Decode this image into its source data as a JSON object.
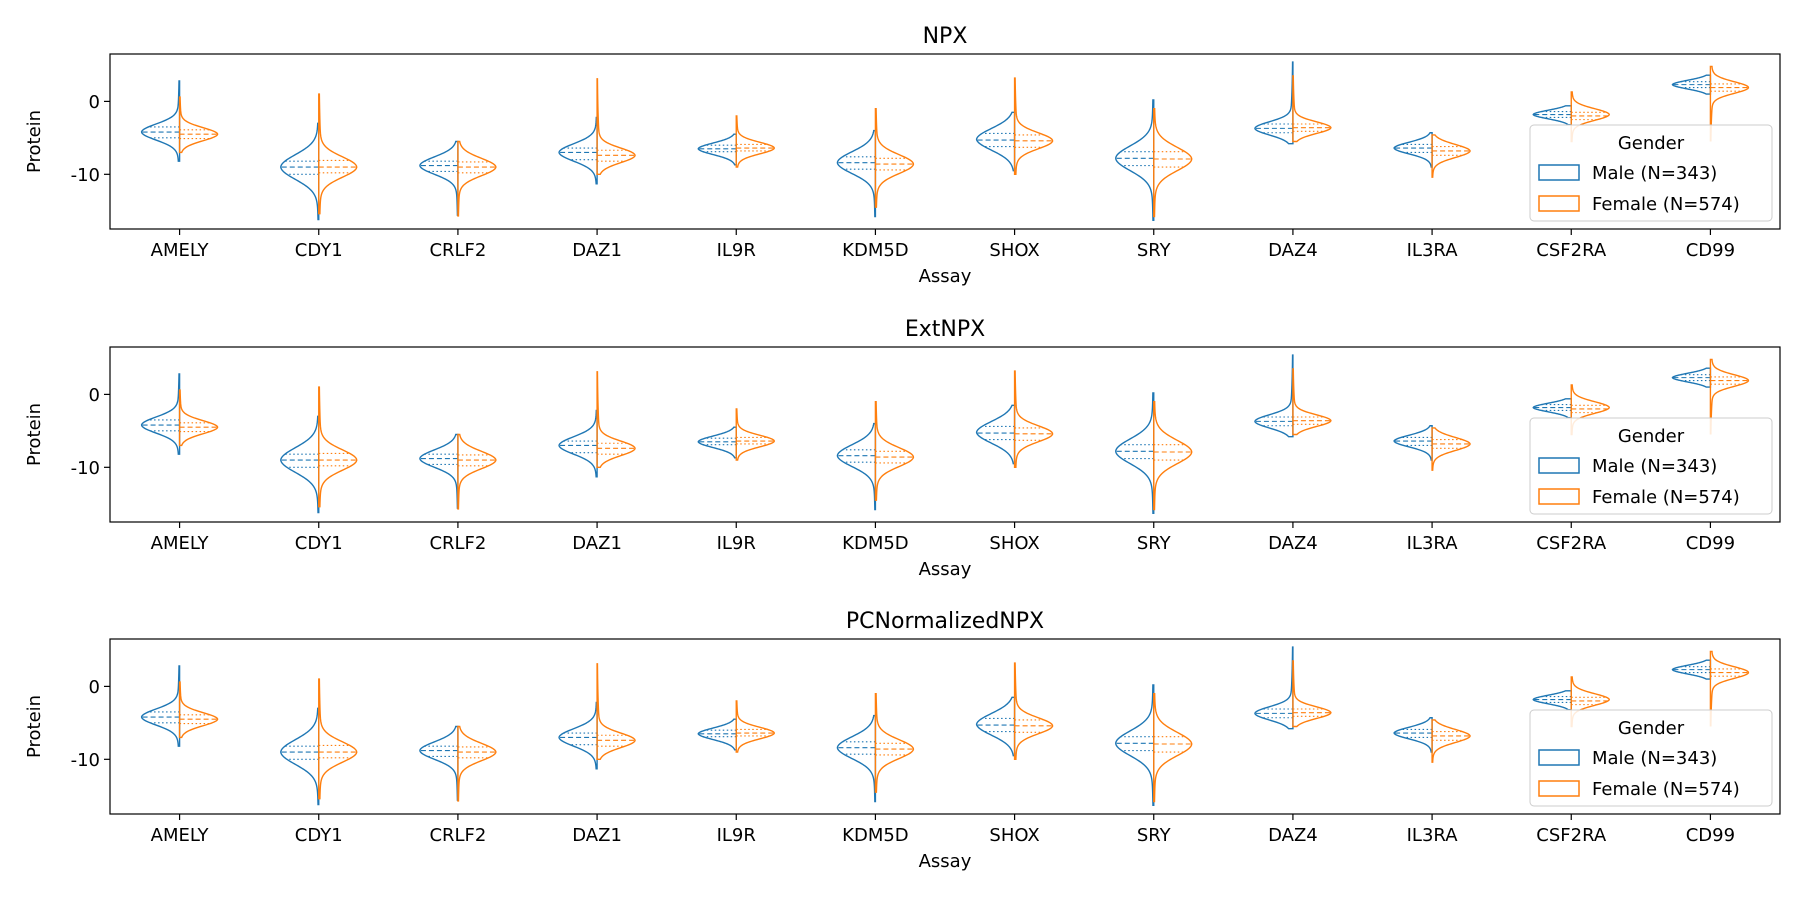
{
  "colors": {
    "male": "#1f77b4",
    "female": "#ff7f0e",
    "axis": "#000000"
  },
  "chart_data": [
    {
      "type": "violin",
      "title": "NPX",
      "xlabel": "Assay",
      "ylabel": "Protein",
      "ylim": [
        -17.5,
        6.5
      ],
      "yticks": [
        0,
        -10
      ],
      "legend": {
        "title": "Gender",
        "placement": "lower-right",
        "entries": [
          {
            "label": "Male (N=343)",
            "color_key": "male"
          },
          {
            "label": "Female (N=574)",
            "color_key": "female"
          }
        ]
      },
      "split": true,
      "categories": [
        "AMELY",
        "CDY1",
        "CRLF2",
        "DAZ1",
        "IL9R",
        "KDM5D",
        "SHOX",
        "SRY",
        "DAZ4",
        "IL3RA",
        "CSF2RA",
        "CD99"
      ],
      "series": [
        {
          "name": "Male (N=343)",
          "color_key": "male",
          "values": [
            {
              "min": -8.2,
              "q1": -5.0,
              "median": -4.2,
              "q3": -3.5,
              "max": 2.8,
              "peak": -4.2,
              "spread": 1.1
            },
            {
              "min": -16.2,
              "q1": -10.0,
              "median": -9.0,
              "q3": -8.2,
              "max": -3.0,
              "peak": -9.0,
              "spread": 1.7
            },
            {
              "min": -15.6,
              "q1": -9.6,
              "median": -8.8,
              "q3": -8.2,
              "max": -5.5,
              "peak": -8.8,
              "spread": 1.2
            },
            {
              "min": -11.3,
              "q1": -8.0,
              "median": -7.0,
              "q3": -6.4,
              "max": -2.2,
              "peak": -7.0,
              "spread": 1.2
            },
            {
              "min": -8.7,
              "q1": -6.9,
              "median": -6.5,
              "q3": -6.0,
              "max": -4.5,
              "peak": -6.5,
              "spread": 0.8
            },
            {
              "min": -15.8,
              "q1": -9.3,
              "median": -8.4,
              "q3": -7.6,
              "max": -4.0,
              "peak": -8.4,
              "spread": 1.5
            },
            {
              "min": -9.5,
              "q1": -6.2,
              "median": -5.3,
              "q3": -4.4,
              "max": -1.5,
              "peak": -5.2,
              "spread": 1.5
            },
            {
              "min": -16.3,
              "q1": -8.8,
              "median": -7.8,
              "q3": -6.9,
              "max": 0.2,
              "peak": -7.8,
              "spread": 1.7
            },
            {
              "min": -5.8,
              "q1": -4.3,
              "median": -3.7,
              "q3": -3.1,
              "max": 5.4,
              "peak": -3.7,
              "spread": 0.9
            },
            {
              "min": -9.0,
              "q1": -7.0,
              "median": -6.4,
              "q3": -5.9,
              "max": -4.3,
              "peak": -6.4,
              "spread": 0.8
            },
            {
              "min": -3.2,
              "q1": -2.2,
              "median": -1.8,
              "q3": -1.4,
              "max": -0.6,
              "peak": -1.8,
              "spread": 0.6
            },
            {
              "min": 1.0,
              "q1": 1.9,
              "median": 2.3,
              "q3": 2.7,
              "max": 3.6,
              "peak": 2.3,
              "spread": 0.6
            }
          ]
        },
        {
          "name": "Female (N=574)",
          "color_key": "female",
          "values": [
            {
              "min": -7.0,
              "q1": -5.1,
              "median": -4.5,
              "q3": -3.9,
              "max": 0.6,
              "peak": -4.5,
              "spread": 0.9
            },
            {
              "min": -15.4,
              "q1": -9.8,
              "median": -9.0,
              "q3": -8.1,
              "max": 1.0,
              "peak": -9.0,
              "spread": 1.4
            },
            {
              "min": -15.7,
              "q1": -9.8,
              "median": -9.0,
              "q3": -8.3,
              "max": -5.5,
              "peak": -9.0,
              "spread": 1.2
            },
            {
              "min": -10.0,
              "q1": -8.2,
              "median": -7.4,
              "q3": -6.7,
              "max": 3.1,
              "peak": -7.4,
              "spread": 1.0
            },
            {
              "min": -9.0,
              "q1": -6.8,
              "median": -6.4,
              "q3": -5.9,
              "max": -2.0,
              "peak": -6.4,
              "spread": 0.8
            },
            {
              "min": -14.5,
              "q1": -9.4,
              "median": -8.6,
              "q3": -7.8,
              "max": -1.0,
              "peak": -8.6,
              "spread": 1.3
            },
            {
              "min": -10.0,
              "q1": -6.3,
              "median": -5.4,
              "q3": -4.6,
              "max": 3.2,
              "peak": -5.4,
              "spread": 1.1
            },
            {
              "min": -15.8,
              "q1": -9.0,
              "median": -7.9,
              "q3": -6.9,
              "max": -1.0,
              "peak": -7.9,
              "spread": 1.6
            },
            {
              "min": -5.5,
              "q1": -4.1,
              "median": -3.6,
              "q3": -3.1,
              "max": 3.5,
              "peak": -3.6,
              "spread": 0.8
            },
            {
              "min": -10.4,
              "q1": -7.4,
              "median": -6.8,
              "q3": -6.2,
              "max": -4.6,
              "peak": -6.8,
              "spread": 0.9
            },
            {
              "min": -5.5,
              "q1": -2.5,
              "median": -2.0,
              "q3": -1.5,
              "max": 1.3,
              "peak": -1.8,
              "spread": 0.8
            },
            {
              "min": -5.4,
              "q1": 1.4,
              "median": 1.9,
              "q3": 2.4,
              "max": 4.8,
              "peak": 1.9,
              "spread": 0.8
            }
          ]
        }
      ]
    },
    {
      "type": "violin",
      "title": "ExtNPX",
      "xlabel": "Assay",
      "ylabel": "Protein",
      "ylim": [
        -17.5,
        6.5
      ],
      "yticks": [
        0,
        -10
      ],
      "legend": {
        "title": "Gender",
        "placement": "lower-right",
        "entries": [
          {
            "label": "Male (N=343)",
            "color_key": "male"
          },
          {
            "label": "Female (N=574)",
            "color_key": "female"
          }
        ]
      },
      "split": true,
      "categories": [
        "AMELY",
        "CDY1",
        "CRLF2",
        "DAZ1",
        "IL9R",
        "KDM5D",
        "SHOX",
        "SRY",
        "DAZ4",
        "IL3RA",
        "CSF2RA",
        "CD99"
      ],
      "series": [
        {
          "name": "Male (N=343)",
          "color_key": "male",
          "values": [
            {
              "min": -8.2,
              "q1": -5.0,
              "median": -4.2,
              "q3": -3.5,
              "max": 2.8,
              "peak": -4.2,
              "spread": 1.1
            },
            {
              "min": -16.2,
              "q1": -10.0,
              "median": -9.0,
              "q3": -8.2,
              "max": -3.0,
              "peak": -9.0,
              "spread": 1.7
            },
            {
              "min": -15.6,
              "q1": -9.6,
              "median": -8.8,
              "q3": -8.2,
              "max": -5.5,
              "peak": -8.8,
              "spread": 1.2
            },
            {
              "min": -11.3,
              "q1": -8.0,
              "median": -7.0,
              "q3": -6.4,
              "max": -2.2,
              "peak": -7.0,
              "spread": 1.2
            },
            {
              "min": -8.7,
              "q1": -6.9,
              "median": -6.5,
              "q3": -6.0,
              "max": -4.5,
              "peak": -6.5,
              "spread": 0.8
            },
            {
              "min": -15.8,
              "q1": -9.3,
              "median": -8.4,
              "q3": -7.6,
              "max": -4.0,
              "peak": -8.4,
              "spread": 1.5
            },
            {
              "min": -9.5,
              "q1": -6.2,
              "median": -5.3,
              "q3": -4.4,
              "max": -1.5,
              "peak": -5.2,
              "spread": 1.5
            },
            {
              "min": -16.3,
              "q1": -8.8,
              "median": -7.8,
              "q3": -6.9,
              "max": 0.2,
              "peak": -7.8,
              "spread": 1.7
            },
            {
              "min": -5.8,
              "q1": -4.3,
              "median": -3.7,
              "q3": -3.1,
              "max": 5.4,
              "peak": -3.7,
              "spread": 0.9
            },
            {
              "min": -9.0,
              "q1": -7.0,
              "median": -6.4,
              "q3": -5.9,
              "max": -4.3,
              "peak": -6.4,
              "spread": 0.8
            },
            {
              "min": -3.2,
              "q1": -2.2,
              "median": -1.8,
              "q3": -1.4,
              "max": -0.6,
              "peak": -1.8,
              "spread": 0.6
            },
            {
              "min": 1.0,
              "q1": 1.9,
              "median": 2.3,
              "q3": 2.7,
              "max": 3.6,
              "peak": 2.3,
              "spread": 0.6
            }
          ]
        },
        {
          "name": "Female (N=574)",
          "color_key": "female",
          "values": [
            {
              "min": -7.0,
              "q1": -5.1,
              "median": -4.5,
              "q3": -3.9,
              "max": 0.6,
              "peak": -4.5,
              "spread": 0.9
            },
            {
              "min": -15.4,
              "q1": -9.8,
              "median": -9.0,
              "q3": -8.1,
              "max": 1.0,
              "peak": -9.0,
              "spread": 1.4
            },
            {
              "min": -15.7,
              "q1": -9.8,
              "median": -9.0,
              "q3": -8.3,
              "max": -5.5,
              "peak": -9.0,
              "spread": 1.2
            },
            {
              "min": -10.0,
              "q1": -8.2,
              "median": -7.4,
              "q3": -6.7,
              "max": 3.1,
              "peak": -7.4,
              "spread": 1.0
            },
            {
              "min": -9.0,
              "q1": -6.8,
              "median": -6.4,
              "q3": -5.9,
              "max": -2.0,
              "peak": -6.4,
              "spread": 0.8
            },
            {
              "min": -14.5,
              "q1": -9.4,
              "median": -8.6,
              "q3": -7.8,
              "max": -1.0,
              "peak": -8.6,
              "spread": 1.3
            },
            {
              "min": -10.0,
              "q1": -6.3,
              "median": -5.4,
              "q3": -4.6,
              "max": 3.2,
              "peak": -5.4,
              "spread": 1.1
            },
            {
              "min": -15.8,
              "q1": -9.0,
              "median": -7.9,
              "q3": -6.9,
              "max": -1.0,
              "peak": -7.9,
              "spread": 1.6
            },
            {
              "min": -5.5,
              "q1": -4.1,
              "median": -3.6,
              "q3": -3.1,
              "max": 3.5,
              "peak": -3.6,
              "spread": 0.8
            },
            {
              "min": -10.4,
              "q1": -7.4,
              "median": -6.8,
              "q3": -6.2,
              "max": -4.6,
              "peak": -6.8,
              "spread": 0.9
            },
            {
              "min": -5.5,
              "q1": -2.5,
              "median": -2.0,
              "q3": -1.5,
              "max": 1.3,
              "peak": -1.8,
              "spread": 0.8
            },
            {
              "min": -5.4,
              "q1": 1.4,
              "median": 1.9,
              "q3": 2.4,
              "max": 4.8,
              "peak": 1.9,
              "spread": 0.8
            }
          ]
        }
      ]
    },
    {
      "type": "violin",
      "title": "PCNormalizedNPX",
      "xlabel": "Assay",
      "ylabel": "Protein",
      "ylim": [
        -17.5,
        6.5
      ],
      "yticks": [
        0,
        -10
      ],
      "legend": {
        "title": "Gender",
        "placement": "lower-right",
        "entries": [
          {
            "label": "Male (N=343)",
            "color_key": "male"
          },
          {
            "label": "Female (N=574)",
            "color_key": "female"
          }
        ]
      },
      "split": true,
      "categories": [
        "AMELY",
        "CDY1",
        "CRLF2",
        "DAZ1",
        "IL9R",
        "KDM5D",
        "SHOX",
        "SRY",
        "DAZ4",
        "IL3RA",
        "CSF2RA",
        "CD99"
      ],
      "series": [
        {
          "name": "Male (N=343)",
          "color_key": "male",
          "values": [
            {
              "min": -8.2,
              "q1": -5.0,
              "median": -4.2,
              "q3": -3.5,
              "max": 2.8,
              "peak": -4.2,
              "spread": 1.1
            },
            {
              "min": -16.2,
              "q1": -10.0,
              "median": -9.0,
              "q3": -8.2,
              "max": -3.0,
              "peak": -9.0,
              "spread": 1.7
            },
            {
              "min": -15.6,
              "q1": -9.6,
              "median": -8.8,
              "q3": -8.2,
              "max": -5.5,
              "peak": -8.8,
              "spread": 1.2
            },
            {
              "min": -11.3,
              "q1": -8.0,
              "median": -7.0,
              "q3": -6.4,
              "max": -2.2,
              "peak": -7.0,
              "spread": 1.2
            },
            {
              "min": -8.7,
              "q1": -6.9,
              "median": -6.5,
              "q3": -6.0,
              "max": -4.5,
              "peak": -6.5,
              "spread": 0.8
            },
            {
              "min": -15.8,
              "q1": -9.3,
              "median": -8.4,
              "q3": -7.6,
              "max": -4.0,
              "peak": -8.4,
              "spread": 1.5
            },
            {
              "min": -9.5,
              "q1": -6.2,
              "median": -5.3,
              "q3": -4.4,
              "max": -1.5,
              "peak": -5.2,
              "spread": 1.5
            },
            {
              "min": -16.3,
              "q1": -8.8,
              "median": -7.8,
              "q3": -6.9,
              "max": 0.2,
              "peak": -7.8,
              "spread": 1.7
            },
            {
              "min": -5.8,
              "q1": -4.3,
              "median": -3.7,
              "q3": -3.1,
              "max": 5.4,
              "peak": -3.7,
              "spread": 0.9
            },
            {
              "min": -9.0,
              "q1": -7.0,
              "median": -6.4,
              "q3": -5.9,
              "max": -4.3,
              "peak": -6.4,
              "spread": 0.8
            },
            {
              "min": -3.2,
              "q1": -2.2,
              "median": -1.8,
              "q3": -1.4,
              "max": -0.6,
              "peak": -1.8,
              "spread": 0.6
            },
            {
              "min": 1.0,
              "q1": 1.9,
              "median": 2.3,
              "q3": 2.7,
              "max": 3.6,
              "peak": 2.3,
              "spread": 0.6
            }
          ]
        },
        {
          "name": "Female (N=574)",
          "color_key": "female",
          "values": [
            {
              "min": -7.0,
              "q1": -5.1,
              "median": -4.5,
              "q3": -3.9,
              "max": 0.6,
              "peak": -4.5,
              "spread": 0.9
            },
            {
              "min": -15.4,
              "q1": -9.8,
              "median": -9.0,
              "q3": -8.1,
              "max": 1.0,
              "peak": -9.0,
              "spread": 1.4
            },
            {
              "min": -15.7,
              "q1": -9.8,
              "median": -9.0,
              "q3": -8.3,
              "max": -5.5,
              "peak": -9.0,
              "spread": 1.2
            },
            {
              "min": -10.0,
              "q1": -8.2,
              "median": -7.4,
              "q3": -6.7,
              "max": 3.1,
              "peak": -7.4,
              "spread": 1.0
            },
            {
              "min": -9.0,
              "q1": -6.8,
              "median": -6.4,
              "q3": -5.9,
              "max": -2.0,
              "peak": -6.4,
              "spread": 0.8
            },
            {
              "min": -14.5,
              "q1": -9.4,
              "median": -8.6,
              "q3": -7.8,
              "max": -1.0,
              "peak": -8.6,
              "spread": 1.3
            },
            {
              "min": -10.0,
              "q1": -6.3,
              "median": -5.4,
              "q3": -4.6,
              "max": 3.2,
              "peak": -5.4,
              "spread": 1.1
            },
            {
              "min": -15.8,
              "q1": -9.0,
              "median": -7.9,
              "q3": -6.9,
              "max": -1.0,
              "peak": -7.9,
              "spread": 1.6
            },
            {
              "min": -5.5,
              "q1": -4.1,
              "median": -3.6,
              "q3": -3.1,
              "max": 3.5,
              "peak": -3.6,
              "spread": 0.8
            },
            {
              "min": -10.4,
              "q1": -7.4,
              "median": -6.8,
              "q3": -6.2,
              "max": -4.6,
              "peak": -6.8,
              "spread": 0.9
            },
            {
              "min": -5.5,
              "q1": -2.5,
              "median": -2.0,
              "q3": -1.5,
              "max": 1.3,
              "peak": -1.8,
              "spread": 0.8
            },
            {
              "min": -5.4,
              "q1": 1.4,
              "median": 1.9,
              "q3": 2.4,
              "max": 4.8,
              "peak": 1.9,
              "spread": 0.8
            }
          ]
        }
      ]
    }
  ]
}
